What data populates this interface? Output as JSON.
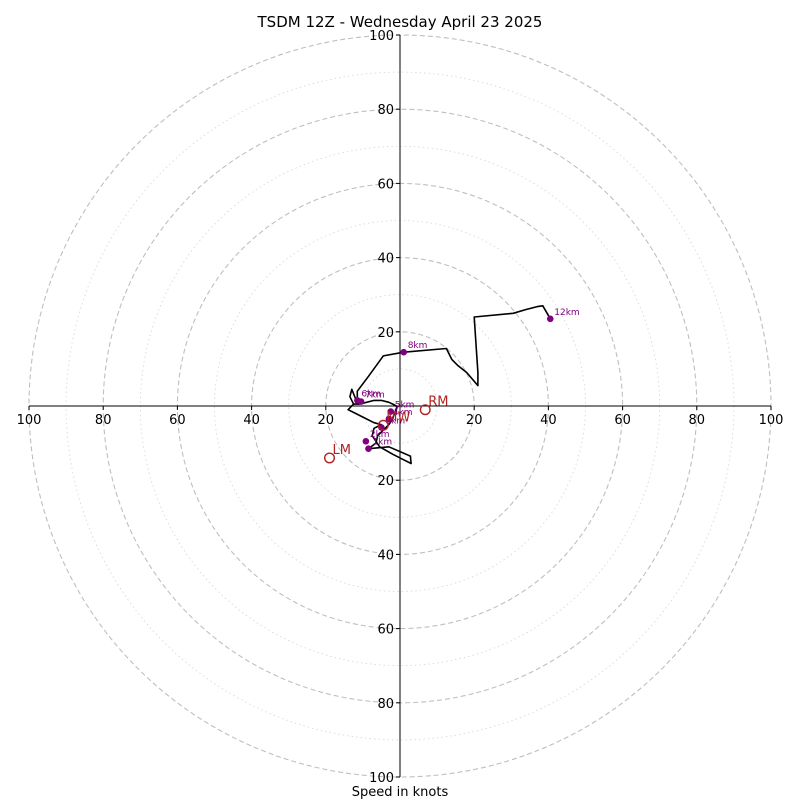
{
  "chart_data": {
    "type": "hodograph",
    "title": "TSDM 12Z - Wednesday April 23 2025",
    "xlabel": "Speed in knots",
    "xlim": [
      -100,
      100
    ],
    "ylim": [
      -100,
      100
    ],
    "rings": [
      10,
      20,
      30,
      40,
      50,
      60,
      70,
      80,
      90,
      100
    ],
    "tick_labels": [
      "100",
      "80",
      "60",
      "40",
      "20",
      "20",
      "40",
      "60",
      "80",
      "100"
    ],
    "tick_values": [
      -100,
      -80,
      -60,
      -40,
      -20,
      20,
      40,
      60,
      80,
      100
    ],
    "grid": true,
    "trace": [
      [
        -8.5,
        -11.5
      ],
      [
        -6.5,
        -10
      ],
      [
        -6,
        -8
      ],
      [
        -4.5,
        -6.5
      ],
      [
        -3,
        -5
      ],
      [
        -2,
        -3.5
      ],
      [
        -1.5,
        -2
      ],
      [
        -1,
        -1.5
      ],
      [
        -1.2,
        -1
      ],
      [
        -0.8,
        -0.5
      ],
      [
        -1,
        0
      ],
      [
        -1.5,
        0.3
      ],
      [
        -3,
        1
      ],
      [
        -5,
        1.5
      ],
      [
        -7,
        1.5
      ],
      [
        -9,
        1
      ],
      [
        -11,
        0.5
      ],
      [
        -12.5,
        0.5
      ],
      [
        -13.5,
        2.5
      ],
      [
        -13,
        4.5
      ],
      [
        -12,
        2
      ],
      [
        -11.5,
        1.5
      ],
      [
        -11.5,
        4
      ],
      [
        -8.5,
        8
      ],
      [
        -4.5,
        13.5
      ],
      [
        1,
        14.5
      ],
      [
        12.5,
        15.5
      ],
      [
        14,
        12.5
      ],
      [
        15.5,
        11
      ],
      [
        18,
        9
      ],
      [
        21,
        5.5
      ],
      [
        21,
        9
      ],
      [
        20,
        24
      ],
      [
        30.5,
        25
      ],
      [
        34,
        26
      ],
      [
        37,
        26.8
      ],
      [
        38.5,
        27
      ],
      [
        40.5,
        23.5
      ]
    ],
    "trace_tail": [
      [
        -12.5,
        0.5
      ],
      [
        -14,
        -1
      ],
      [
        -12,
        -2
      ],
      [
        -10,
        -3
      ],
      [
        -7,
        -4.5
      ],
      [
        -5,
        -5
      ],
      [
        -7,
        -6
      ],
      [
        -7.5,
        -8
      ],
      [
        -5.5,
        -11
      ],
      [
        -2,
        -13
      ],
      [
        1,
        -14.5
      ],
      [
        3,
        -15.5
      ],
      [
        2.8,
        -13.5
      ],
      [
        -3,
        -11
      ],
      [
        -8.5,
        -11.5
      ]
    ],
    "height_markers": [
      {
        "label": "1km",
        "x": -8.5,
        "y": -11.5
      },
      {
        "label": "2km",
        "x": -9.2,
        "y": -9.5
      },
      {
        "label": "3km",
        "x": -5,
        "y": -5.8
      },
      {
        "label": "4km",
        "x": -3,
        "y": -3.5
      },
      {
        "label": "5km",
        "x": -2.5,
        "y": -1.5
      },
      {
        "label": "6km",
        "x": -11.5,
        "y": 1.5
      },
      {
        "label": "7km",
        "x": -10.5,
        "y": 1.2
      },
      {
        "label": "8km",
        "x": 1,
        "y": 14.5
      },
      {
        "label": "12km",
        "x": 40.5,
        "y": 23.5
      }
    ],
    "storm_motions": [
      {
        "label": "RM",
        "x": 6.8,
        "y": -1
      },
      {
        "label": "LM",
        "x": -19,
        "y": -14
      },
      {
        "label": "MW",
        "x": -4.5,
        "y": -5.2
      }
    ],
    "colors": {
      "trace": "#000000",
      "markers": "#800080",
      "motions": "#b22222",
      "grid": "#bfbfbf"
    }
  }
}
